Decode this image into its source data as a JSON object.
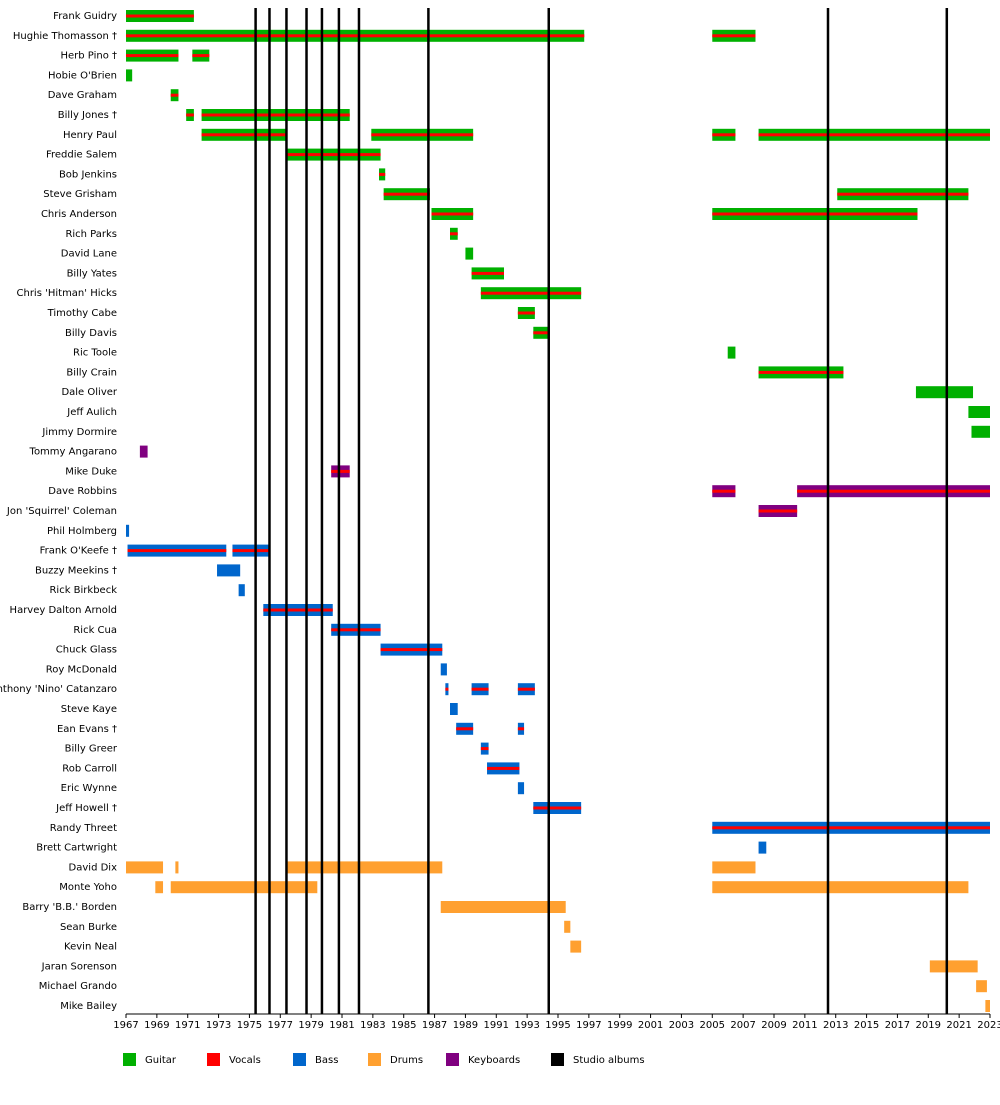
{
  "chart_data": {
    "type": "timeline",
    "categories": [
      "Frank Guidry",
      "Hughie Thomasson †",
      "Herb Pino †",
      "Hobie O'Brien",
      "Dave Graham",
      "Billy Jones †",
      "Henry Paul",
      "Freddie Salem",
      "Bob Jenkins",
      "Steve Grisham",
      "Chris Anderson",
      "Rich Parks",
      "David Lane",
      "Billy Yates",
      "Chris 'Hitman' Hicks",
      "Timothy Cabe",
      "Billy Davis",
      "Ric Toole",
      "Billy Crain",
      "Dale Oliver",
      "Jeff Aulich",
      "Jimmy Dormire",
      "Tommy Angarano",
      "Mike Duke",
      "Dave Robbins",
      "Jon 'Squirrel' Coleman",
      "Phil Holmberg",
      "Frank O'Keefe †",
      "Buzzy Meekins †",
      "Rick Birkbeck",
      "Harvey Dalton Arnold",
      "Rick Cua",
      "Chuck Glass",
      "Roy McDonald",
      "Anthony 'Nino' Catanzaro",
      "Steve Kaye",
      "Ean Evans †",
      "Billy Greer",
      "Rob Carroll",
      "Eric Wynne",
      "Jeff Howell †",
      "Randy Threet",
      "Brett Cartwright",
      "David Dix",
      "Monte Yoho",
      "Barry 'B.B.' Borden",
      "Sean Burke",
      "Kevin Neal",
      "Jaran Sorenson",
      "Michael Grando",
      "Mike Bailey"
    ],
    "series": [
      {
        "name": "Guitar",
        "color": "#00b000",
        "layer": "bar",
        "values": [
          [
            [
              1967,
              1971.4
            ]
          ],
          [
            [
              1967,
              1996.7
            ],
            [
              2005,
              2007.8
            ]
          ],
          [
            [
              1967,
              1970.4
            ],
            [
              1971.3,
              1972.4
            ]
          ],
          [
            [
              1967,
              1967.4
            ]
          ],
          [
            [
              1969.9,
              1970.4
            ]
          ],
          [
            [
              1970.9,
              1971.4
            ],
            [
              1971.9,
              1981.5
            ]
          ],
          [
            [
              1971.9,
              1977.4
            ],
            [
              1982.9,
              1989.5
            ],
            [
              2005,
              2006.5
            ],
            [
              2008,
              2023
            ]
          ],
          [
            [
              1977.4,
              1983.5
            ]
          ],
          [
            [
              1983.4,
              1983.8
            ]
          ],
          [
            [
              1983.7,
              1986.7
            ],
            [
              2013.1,
              2021.6
            ]
          ],
          [
            [
              1986.8,
              1989.5
            ],
            [
              2005,
              2018.3
            ]
          ],
          [
            [
              1988,
              1988.5
            ]
          ],
          [
            [
              1989,
              1989.5
            ]
          ],
          [
            [
              1989.4,
              1991.5
            ]
          ],
          [
            [
              1990,
              1996.5
            ]
          ],
          [
            [
              1992.4,
              1993.5
            ]
          ],
          [
            [
              1993.4,
              1994.4
            ]
          ],
          [
            [
              2006,
              2006.5
            ]
          ],
          [
            [
              2008,
              2013.5
            ]
          ],
          [
            [
              2018.2,
              2021.9
            ]
          ],
          [
            [
              2021.6,
              2023
            ]
          ],
          [
            [
              2021.8,
              2023
            ]
          ],
          [],
          [],
          [],
          [],
          [],
          [],
          [],
          [],
          [],
          [],
          [],
          [],
          [],
          [],
          [],
          [],
          [],
          [],
          [],
          [],
          [],
          [],
          [],
          [],
          [],
          [],
          [],
          [],
          []
        ]
      },
      {
        "name": "Vocals",
        "color": "#ff0000",
        "layer": "stripe",
        "values": [
          [
            [
              1967,
              1971.4
            ]
          ],
          [
            [
              1967,
              1996.7
            ],
            [
              2005,
              2007.8
            ]
          ],
          [
            [
              1967,
              1970.4
            ],
            [
              1971.3,
              1972.4
            ]
          ],
          [],
          [
            [
              1969.9,
              1970.4
            ]
          ],
          [
            [
              1970.9,
              1971.4
            ],
            [
              1971.9,
              1981.5
            ]
          ],
          [
            [
              1971.9,
              1977.4
            ],
            [
              1982.9,
              1989.5
            ],
            [
              2005,
              2006.5
            ],
            [
              2008,
              2023
            ]
          ],
          [
            [
              1977.4,
              1983.5
            ]
          ],
          [
            [
              1983.4,
              1983.8
            ]
          ],
          [
            [
              1983.7,
              1986.7
            ],
            [
              2013.1,
              2021.6
            ]
          ],
          [
            [
              1986.8,
              1989.5
            ],
            [
              2005,
              2018.3
            ]
          ],
          [
            [
              1988,
              1988.5
            ]
          ],
          [],
          [
            [
              1989.4,
              1991.5
            ]
          ],
          [
            [
              1990,
              1996.5
            ]
          ],
          [
            [
              1992.4,
              1993.5
            ]
          ],
          [
            [
              1993.4,
              1994.4
            ]
          ],
          [],
          [
            [
              2008,
              2013.5
            ]
          ],
          [],
          [],
          [],
          [],
          [
            [
              1980.3,
              1981.5
            ]
          ],
          [
            [
              2005,
              2006.5
            ],
            [
              2010.5,
              2023
            ]
          ],
          [
            [
              2008,
              2010.5
            ]
          ],
          [],
          [
            [
              1967.1,
              1973.5
            ],
            [
              1973.9,
              1976.3
            ]
          ],
          [],
          [],
          [
            [
              1975.9,
              1980.4
            ]
          ],
          [
            [
              1980.3,
              1983.5
            ]
          ],
          [
            [
              1983.5,
              1987.5
            ]
          ],
          [],
          [
            [
              1987.7,
              1987.9
            ],
            [
              1989.4,
              1990.5
            ],
            [
              1992.4,
              1993.5
            ]
          ],
          [],
          [
            [
              1988.4,
              1989.5
            ],
            [
              1992.4,
              1992.8
            ]
          ],
          [
            [
              1990,
              1990.5
            ]
          ],
          [
            [
              1990.4,
              1992.5
            ]
          ],
          [],
          [
            [
              1993.4,
              1996.5
            ]
          ],
          [
            [
              2005,
              2023
            ]
          ],
          [],
          [],
          [],
          [],
          [],
          [],
          [],
          [],
          []
        ]
      },
      {
        "name": "Bass",
        "color": "#0066cc",
        "layer": "bar",
        "values": [
          [],
          [],
          [],
          [],
          [],
          [],
          [],
          [],
          [],
          [],
          [],
          [],
          [],
          [],
          [],
          [],
          [],
          [],
          [],
          [],
          [],
          [],
          [],
          [],
          [],
          [],
          [
            [
              1967,
              1967.2
            ]
          ],
          [
            [
              1967.1,
              1973.5
            ],
            [
              1973.9,
              1976.3
            ]
          ],
          [
            [
              1972.9,
              1974.4
            ]
          ],
          [
            [
              1974.3,
              1974.7
            ]
          ],
          [
            [
              1975.9,
              1980.4
            ]
          ],
          [
            [
              1980.3,
              1983.5
            ]
          ],
          [
            [
              1983.5,
              1987.5
            ]
          ],
          [
            [
              1987.4,
              1987.8
            ]
          ],
          [
            [
              1987.7,
              1987.9
            ],
            [
              1989.4,
              1990.5
            ],
            [
              1992.4,
              1993.5
            ]
          ],
          [
            [
              1988,
              1988.5
            ]
          ],
          [
            [
              1988.4,
              1989.5
            ],
            [
              1992.4,
              1992.8
            ]
          ],
          [
            [
              1990,
              1990.5
            ]
          ],
          [
            [
              1990.4,
              1992.5
            ]
          ],
          [
            [
              1992.4,
              1992.8
            ]
          ],
          [
            [
              1993.4,
              1996.5
            ]
          ],
          [
            [
              2005,
              2023
            ]
          ],
          [
            [
              2008,
              2008.5
            ]
          ],
          [],
          [],
          [],
          [],
          [],
          [],
          [],
          []
        ]
      },
      {
        "name": "Drums",
        "color": "#ffa030",
        "layer": "bar",
        "values": [
          [],
          [],
          [],
          [],
          [],
          [],
          [],
          [],
          [],
          [],
          [],
          [],
          [],
          [],
          [],
          [],
          [],
          [],
          [],
          [],
          [],
          [],
          [],
          [],
          [],
          [],
          [],
          [],
          [],
          [],
          [],
          [],
          [],
          [],
          [],
          [],
          [],
          [],
          [],
          [],
          [],
          [],
          [],
          [
            [
              1967,
              1969.4
            ],
            [
              1970.2,
              1970.4
            ],
            [
              1977.4,
              1987.5
            ],
            [
              2005,
              2007.8
            ]
          ],
          [
            [
              1968.9,
              1969.4
            ],
            [
              1969.9,
              1979.4
            ],
            [
              2005,
              2021.6
            ]
          ],
          [
            [
              1987.4,
              1995.5
            ]
          ],
          [
            [
              1995.4,
              1995.8
            ]
          ],
          [
            [
              1995.8,
              1996.5
            ]
          ],
          [
            [
              2019.1,
              2022.2
            ]
          ],
          [
            [
              2022.1,
              2022.8
            ]
          ],
          [
            [
              2022.7,
              2023
            ]
          ]
        ]
      },
      {
        "name": "Keyboards",
        "color": "#800080",
        "layer": "bar",
        "values": [
          [],
          [],
          [],
          [],
          [],
          [],
          [],
          [],
          [],
          [],
          [],
          [],
          [],
          [],
          [],
          [],
          [],
          [],
          [],
          [],
          [],
          [],
          [
            [
              1967.9,
              1968.4
            ]
          ],
          [
            [
              1980.3,
              1981.5
            ]
          ],
          [
            [
              2005,
              2006.5
            ],
            [
              2010.5,
              2023
            ]
          ],
          [
            [
              2008,
              2010.5
            ]
          ],
          [],
          [],
          [],
          [],
          [],
          [],
          [],
          [],
          [],
          [],
          [],
          [],
          [],
          [],
          [],
          [],
          [],
          [],
          [],
          [],
          [],
          [],
          [],
          [],
          []
        ]
      },
      {
        "name": "Studio albums",
        "color": "#000000",
        "layer": "event",
        "x": [
          1975.4,
          1976.3,
          1977.4,
          1978.7,
          1979.7,
          1980.8,
          1982.1,
          1986.6,
          1994.4,
          2012.5,
          2020.2
        ]
      }
    ],
    "xlim": [
      1967,
      2023
    ],
    "xticks": [
      1967,
      1969,
      1971,
      1973,
      1975,
      1977,
      1979,
      1981,
      1983,
      1985,
      1987,
      1989,
      1991,
      1993,
      1995,
      1997,
      1999,
      2001,
      2003,
      2005,
      2007,
      2009,
      2011,
      2013,
      2015,
      2017,
      2019,
      2021,
      2023
    ]
  }
}
